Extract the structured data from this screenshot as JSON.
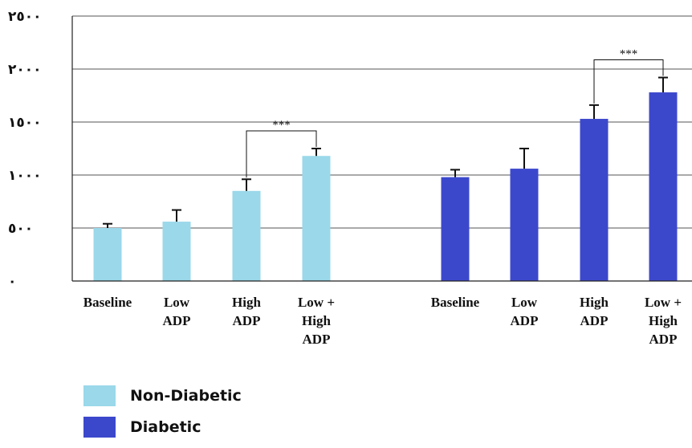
{
  "chart_data": {
    "type": "bar",
    "title": "",
    "xlabel": "",
    "ylabel": "",
    "ylim": [
      0,
      2500
    ],
    "yticks": [
      0,
      500,
      1000,
      1500,
      2000,
      2500
    ],
    "ytick_labels": [
      "٠",
      "٥٠٠",
      "١٠٠٠",
      "١٥٠٠",
      "٢٠٠٠",
      "٢٥٠٠"
    ],
    "grid": true,
    "legend_position": "bottom-left",
    "groups": [
      {
        "name": "Non-Diabetic",
        "color": "#9ad8ea",
        "categories": [
          [
            "Baseline"
          ],
          [
            "Low",
            "ADP"
          ],
          [
            "High",
            "ADP"
          ],
          [
            "Low +",
            "High",
            "ADP"
          ]
        ],
        "values": [
          500,
          560,
          850,
          1180
        ],
        "errors": [
          40,
          110,
          110,
          70
        ]
      },
      {
        "name": "Diabetic",
        "color": "#3c48cc",
        "categories": [
          [
            "Baseline"
          ],
          [
            "Low",
            "ADP"
          ],
          [
            "High",
            "ADP"
          ],
          [
            "Low +",
            "High",
            "ADP"
          ]
        ],
        "values": [
          980,
          1060,
          1530,
          1780
        ],
        "errors": [
          70,
          190,
          130,
          140
        ]
      }
    ],
    "significance": [
      {
        "group": 0,
        "from": 2,
        "to": 3,
        "label": "***"
      },
      {
        "group": 1,
        "from": 2,
        "to": 3,
        "label": "***"
      }
    ]
  },
  "legend": {
    "items": [
      {
        "label": "Non-Diabetic",
        "color": "#9ad8ea"
      },
      {
        "label": "Diabetic",
        "color": "#3c48cc"
      }
    ]
  }
}
